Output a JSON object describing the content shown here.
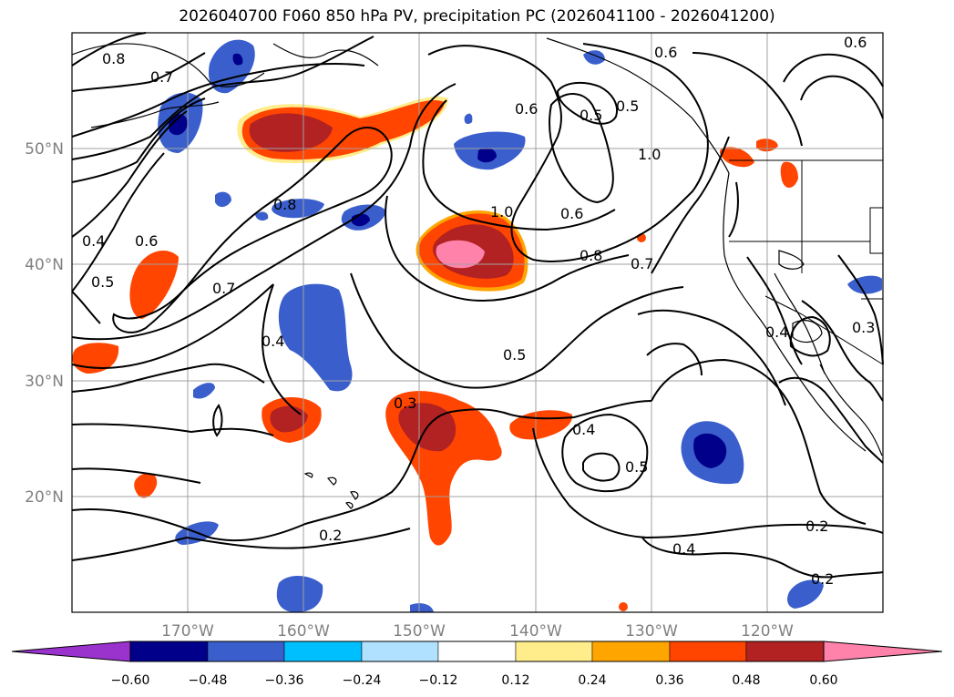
{
  "title": "2026040700 F060 850 hPa PV, precipitation PC (2026041100 - 2026041200)",
  "latitude_labels": [
    "50°N",
    "40°N",
    "30°N",
    "20°N"
  ],
  "longitude_labels": [
    "170°W",
    "160°W",
    "150°W",
    "140°W",
    "130°W",
    "120°W"
  ],
  "colorbar": {
    "ticks": [
      "−0.60",
      "−0.48",
      "−0.36",
      "−0.24",
      "−0.12",
      "0.12",
      "0.24",
      "0.36",
      "0.48",
      "0.60"
    ],
    "colors": [
      "#9a32cd",
      "#00008b",
      "#3a5fcd",
      "#00bfff",
      "#b0e2ff",
      "#ffffff",
      "#ffec8b",
      "#ffa500",
      "#ff4500",
      "#b22222",
      "#ff82ab"
    ]
  },
  "contour_labels": [
    "0.8",
    "0.7",
    "0.6",
    "0.5",
    "0.4",
    "0.8",
    "0.6",
    "0.7",
    "1.0",
    "0.6",
    "0.5",
    "1.0",
    "0.6",
    "0.8",
    "0.7",
    "0.5",
    "0.4",
    "0.3",
    "0.4",
    "0.5",
    "0.2",
    "0.2",
    "0.4",
    "0.2",
    "0.4",
    "0.3",
    "0.6",
    "0.5"
  ]
}
